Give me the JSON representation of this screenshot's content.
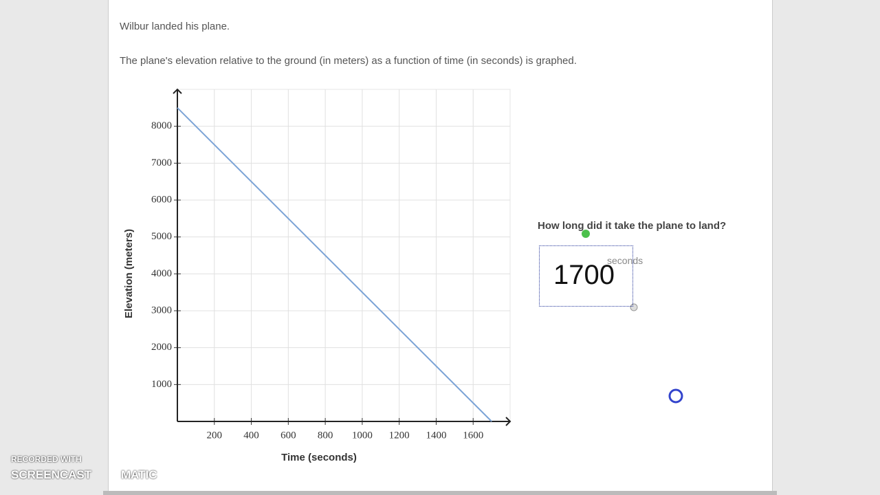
{
  "problem": {
    "intro": "Wilbur landed his plane.",
    "statement": "The plane's elevation relative to the ground (in meters) as a function of time (in seconds) is graphed."
  },
  "chart_data": {
    "type": "line",
    "xlabel": "Time (seconds)",
    "ylabel": "Elevation (meters)",
    "x": [
      0,
      1700
    ],
    "series": [
      {
        "color": "#7ba3d6",
        "values": [
          8500,
          0
        ]
      }
    ],
    "xlim": [
      0,
      1800
    ],
    "ylim": [
      0,
      9000
    ],
    "xticks": [
      200,
      400,
      600,
      800,
      1000,
      1200,
      1400,
      1600
    ],
    "yticks": [
      1000,
      2000,
      3000,
      4000,
      5000,
      6000,
      7000,
      8000
    ],
    "grid": true
  },
  "question": {
    "prompt": "How long did it take the plane to land?",
    "answer": 1700,
    "unit": "seconds"
  },
  "watermark": {
    "line1": "RECORDED WITH",
    "brand_left": "SCREENCAST",
    "brand_right": "MATIC"
  }
}
